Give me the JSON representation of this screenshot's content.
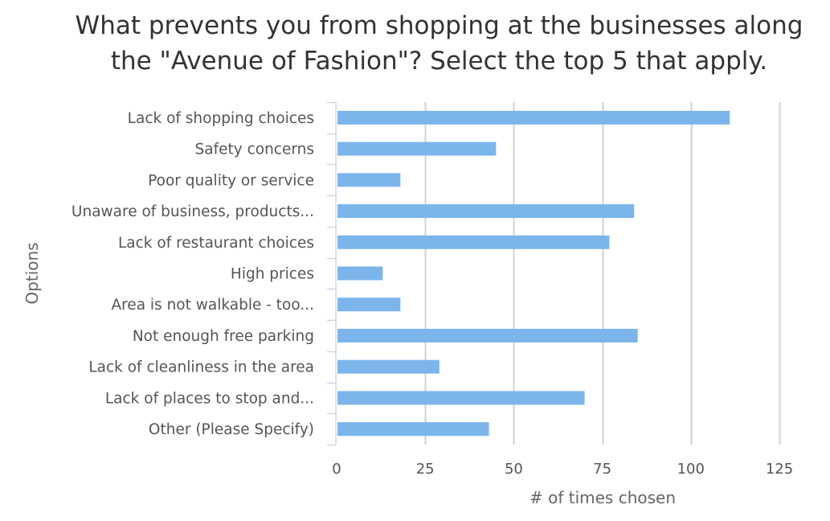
{
  "chart_data": {
    "type": "bar",
    "orientation": "horizontal",
    "title": "What prevents you from shopping at the businesses along the \"Avenue of Fashion\"? Select the top 5 that apply.",
    "title_lines": [
      "What prevents you from shopping at the businesses along",
      "the \"Avenue of Fashion\"? Select the top 5 that apply."
    ],
    "xlabel": "# of times chosen",
    "ylabel": "Options",
    "xlim": [
      0,
      125
    ],
    "xticks": [
      0,
      25,
      50,
      75,
      100,
      125
    ],
    "categories": [
      "Lack of shopping choices",
      "Safety concerns",
      "Poor quality or service",
      "Unaware of business, products...",
      "Lack of restaurant choices",
      "High prices",
      "Area is not walkable - too...",
      "Not enough free parking",
      "Lack of cleanliness in the area",
      "Lack of places to stop and...",
      "Other (Please Specify)"
    ],
    "values": [
      111,
      45,
      18,
      84,
      77,
      13,
      18,
      85,
      29,
      70,
      43
    ],
    "grid": "vertical",
    "legend": "none",
    "bar_color": "#7cb5ec"
  }
}
